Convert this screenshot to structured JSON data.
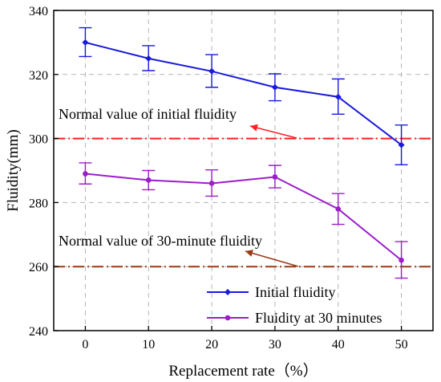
{
  "chart_data": {
    "type": "line",
    "x": [
      0,
      10,
      20,
      30,
      40,
      50
    ],
    "xlabel": "Replacement rate（%）",
    "ylabel": "Fluidity(mm)",
    "xlim": [
      -5,
      55
    ],
    "ylim": [
      240,
      340
    ],
    "xticks": [
      "0",
      "10",
      "20",
      "30",
      "40",
      "50"
    ],
    "yticks": [
      "240",
      "260",
      "280",
      "300",
      "320",
      "340"
    ],
    "grid": "dashed, both axes",
    "legend_position": "bottom-right",
    "series": [
      {
        "name": "Initial fluidity",
        "color": "#1a1adc",
        "marker": "diamond",
        "values": [
          330,
          325,
          321,
          316,
          313,
          298
        ],
        "error_low": [
          325.6,
          321.2,
          316.0,
          311.8,
          307.6,
          291.8
        ],
        "error_high": [
          334.6,
          329.0,
          326.2,
          320.2,
          318.6,
          304.2
        ]
      },
      {
        "name": "Fluidity at 30 minutes",
        "color": "#9b1ec8",
        "marker": "circle",
        "values": [
          289,
          287,
          286,
          288,
          278,
          262
        ],
        "error_low": [
          285.8,
          284.0,
          282.0,
          284.6,
          273.2,
          256.4
        ],
        "error_high": [
          292.4,
          290.0,
          290.2,
          291.6,
          282.8,
          267.8
        ]
      }
    ],
    "reference_lines": [
      {
        "y": 300,
        "label": "Normal value of initial fluidity",
        "color": "#ff2020",
        "style": "dash-dot"
      },
      {
        "y": 260,
        "label": "Normal value of 30-minute fluidity",
        "color": "#9a3a14",
        "style": "dash-dot"
      }
    ]
  }
}
